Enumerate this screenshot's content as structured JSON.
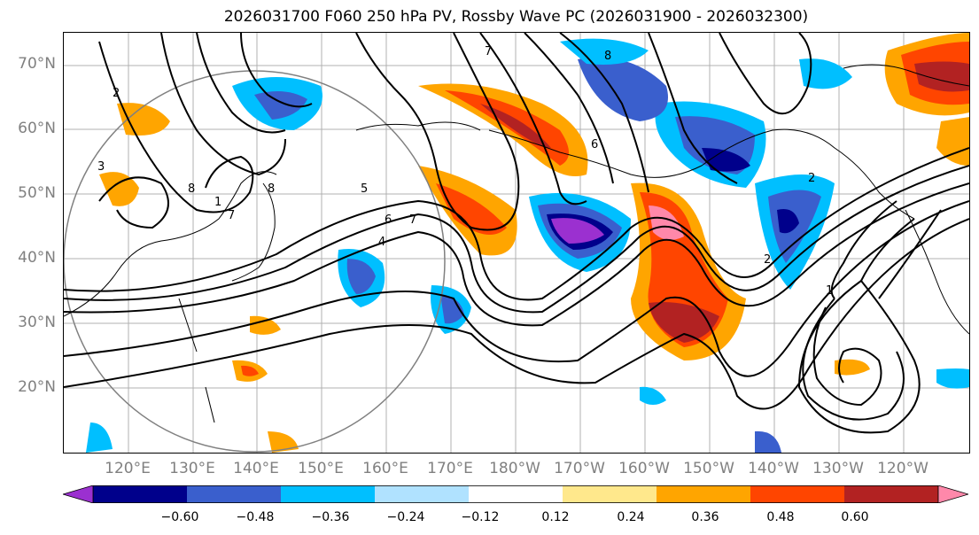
{
  "title": "2026031700 F060 250 hPa PV, Rossby Wave PC (2026031900 - 2026032300)",
  "lat_labels": [
    "70°N",
    "60°N",
    "50°N",
    "40°N",
    "30°N",
    "20°N"
  ],
  "lon_labels": [
    "120°E",
    "130°E",
    "140°E",
    "150°E",
    "160°E",
    "170°E",
    "180°W",
    "170°W",
    "160°W",
    "150°W",
    "140°W",
    "130°W",
    "120°W"
  ],
  "colorbar": {
    "ticks": [
      "−0.60",
      "−0.48",
      "−0.36",
      "−0.24",
      "−0.12",
      "0.12",
      "0.24",
      "0.36",
      "0.48",
      "0.60"
    ],
    "colors": [
      "#9b30d0",
      "#00008b",
      "#3a5fcd",
      "#00bfff",
      "#b0e2ff",
      "#ffffff",
      "#ffe88c",
      "#ffa500",
      "#ff4500",
      "#b22222",
      "#ff88aa"
    ]
  },
  "contour_labels": [
    "2",
    "8",
    "7",
    "8",
    "5",
    "6",
    "7",
    "7",
    "8",
    "6",
    "2",
    "1",
    "3",
    "4",
    "2",
    "1"
  ],
  "style": {
    "gridline_color": "#b0b0b0",
    "coastline_color": "#000000",
    "contour_color": "#000000",
    "label_color": "#808080"
  }
}
